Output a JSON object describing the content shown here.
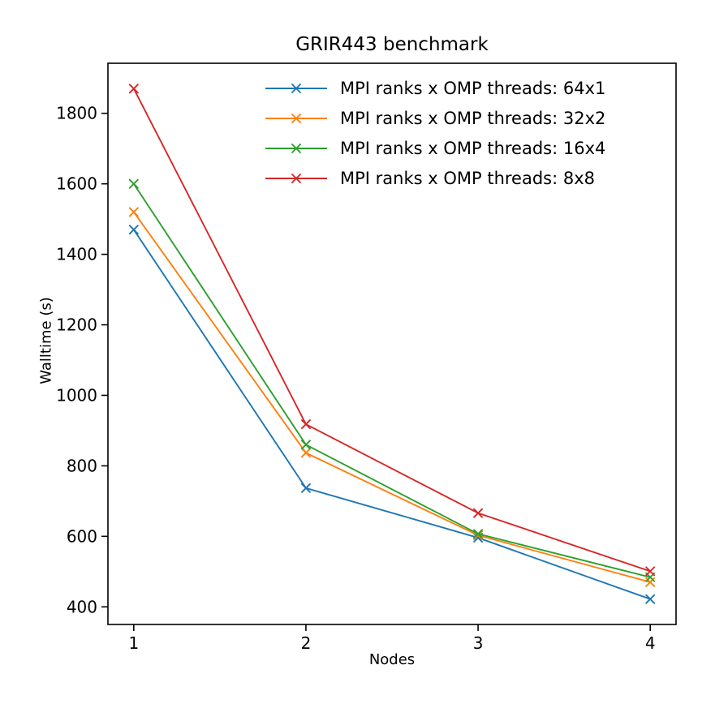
{
  "figure": {
    "title": "GRIR443 benchmark",
    "xlabel": "Nodes",
    "ylabel": "Walltime (s)"
  },
  "chart_data": {
    "type": "line",
    "title": "GRIR443 benchmark",
    "xlabel": "Nodes",
    "ylabel": "Walltime (s)",
    "x": [
      1,
      2,
      3,
      4
    ],
    "series": [
      {
        "name": "MPI ranks x OMP threads: 64x1",
        "color": "#1f77b4",
        "marker": "x",
        "values": [
          1470,
          737,
          596,
          422
        ]
      },
      {
        "name": "MPI ranks x OMP threads: 32x2",
        "color": "#ff7f0e",
        "marker": "x",
        "values": [
          1520,
          837,
          603,
          470
        ]
      },
      {
        "name": "MPI ranks x OMP threads: 16x4",
        "color": "#2ca02c",
        "marker": "x",
        "values": [
          1600,
          860,
          607,
          484
        ]
      },
      {
        "name": "MPI ranks x OMP threads: 8x8",
        "color": "#d62728",
        "marker": "x",
        "values": [
          1870,
          918,
          666,
          501
        ]
      }
    ],
    "xticks": [
      "1",
      "2",
      "3",
      "4"
    ],
    "xtick_values": [
      1,
      2,
      3,
      4
    ],
    "yticks": [
      "400",
      "600",
      "800",
      "1000",
      "1200",
      "1400",
      "1600",
      "1800"
    ],
    "ytick_values": [
      400,
      600,
      800,
      1000,
      1200,
      1400,
      1600,
      1800
    ],
    "xlim": [
      0.85,
      4.15
    ],
    "ylim": [
      350,
      1942
    ],
    "grid": false,
    "legend_position": "upper right",
    "axis_color": "#000000",
    "background_color": "#ffffff"
  }
}
